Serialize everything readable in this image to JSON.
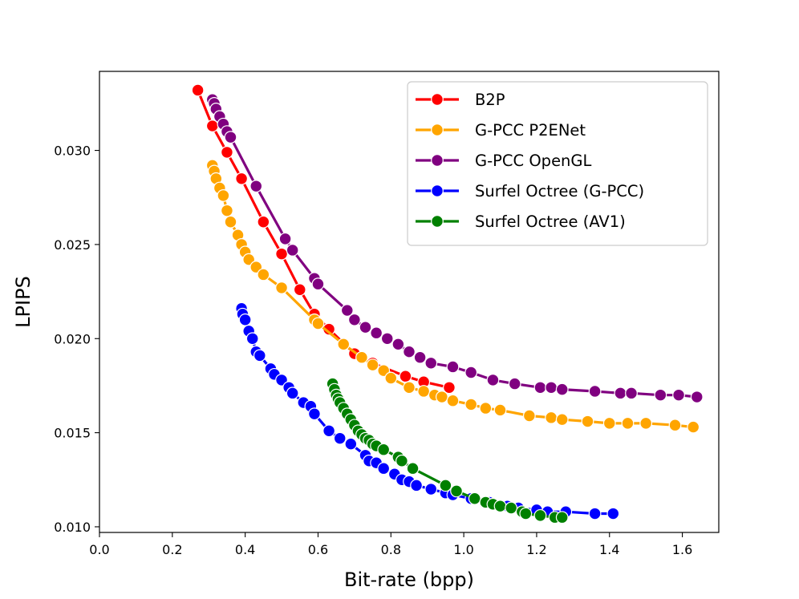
{
  "chart_data": {
    "type": "line",
    "title": "",
    "xlabel": "Bit-rate (bpp)",
    "ylabel": "LPIPS",
    "xlim": [
      0.0,
      1.7
    ],
    "ylim": [
      0.0097,
      0.0342
    ],
    "x_ticks": [
      "0.0",
      "0.2",
      "0.4",
      "0.6",
      "0.8",
      "1.0",
      "1.2",
      "1.4",
      "1.6"
    ],
    "x_tick_values": [
      0.0,
      0.2,
      0.4,
      0.6,
      0.8,
      1.0,
      1.2,
      1.4,
      1.6
    ],
    "y_ticks": [
      "0.010",
      "0.015",
      "0.020",
      "0.025",
      "0.030"
    ],
    "y_tick_values": [
      0.01,
      0.015,
      0.02,
      0.025,
      0.03
    ],
    "grid": false,
    "legend_position": "top-right",
    "series": [
      {
        "name": "B2P",
        "color": "#ff0000",
        "x": [
          0.27,
          0.31,
          0.35,
          0.39,
          0.45,
          0.5,
          0.55,
          0.59,
          0.63,
          0.7,
          0.75,
          0.84,
          0.89,
          0.96
        ],
        "y": [
          0.0332,
          0.0313,
          0.0299,
          0.0285,
          0.0262,
          0.0245,
          0.0226,
          0.0213,
          0.0205,
          0.0192,
          0.0187,
          0.018,
          0.0177,
          0.0174
        ]
      },
      {
        "name": "G-PCC P2ENet",
        "color": "#ffa500",
        "x": [
          0.31,
          0.315,
          0.32,
          0.33,
          0.34,
          0.35,
          0.36,
          0.38,
          0.39,
          0.4,
          0.41,
          0.43,
          0.45,
          0.5,
          0.59,
          0.6,
          0.67,
          0.72,
          0.75,
          0.78,
          0.8,
          0.85,
          0.89,
          0.92,
          0.94,
          0.97,
          1.02,
          1.06,
          1.1,
          1.18,
          1.24,
          1.27,
          1.34,
          1.4,
          1.45,
          1.5,
          1.58,
          1.63
        ],
        "y": [
          0.0292,
          0.0289,
          0.0285,
          0.028,
          0.0276,
          0.0268,
          0.0262,
          0.0255,
          0.025,
          0.0246,
          0.0242,
          0.0238,
          0.0234,
          0.0227,
          0.021,
          0.0208,
          0.0197,
          0.019,
          0.0186,
          0.0183,
          0.0179,
          0.0174,
          0.0172,
          0.017,
          0.0169,
          0.0167,
          0.0165,
          0.0163,
          0.0162,
          0.0159,
          0.0158,
          0.0157,
          0.0156,
          0.0155,
          0.0155,
          0.0155,
          0.0154,
          0.0153
        ]
      },
      {
        "name": "G-PCC OpenGL",
        "color": "#800080",
        "x": [
          0.31,
          0.315,
          0.32,
          0.33,
          0.34,
          0.35,
          0.36,
          0.43,
          0.51,
          0.53,
          0.59,
          0.6,
          0.68,
          0.7,
          0.73,
          0.76,
          0.79,
          0.82,
          0.85,
          0.88,
          0.91,
          0.97,
          1.02,
          1.08,
          1.14,
          1.21,
          1.24,
          1.27,
          1.36,
          1.43,
          1.46,
          1.54,
          1.59,
          1.64
        ],
        "y": [
          0.0327,
          0.0325,
          0.0322,
          0.0318,
          0.0314,
          0.031,
          0.0307,
          0.0281,
          0.0253,
          0.0247,
          0.0232,
          0.0229,
          0.0215,
          0.021,
          0.0206,
          0.0203,
          0.02,
          0.0197,
          0.0193,
          0.019,
          0.0187,
          0.0185,
          0.0182,
          0.0178,
          0.0176,
          0.0174,
          0.0174,
          0.0173,
          0.0172,
          0.0171,
          0.0171,
          0.017,
          0.017,
          0.0169
        ]
      },
      {
        "name": "Surfel Octree (G-PCC)",
        "color": "#0000ff",
        "x": [
          0.39,
          0.393,
          0.4,
          0.41,
          0.42,
          0.43,
          0.44,
          0.47,
          0.48,
          0.5,
          0.52,
          0.53,
          0.56,
          0.58,
          0.59,
          0.63,
          0.66,
          0.69,
          0.73,
          0.74,
          0.76,
          0.78,
          0.81,
          0.83,
          0.85,
          0.87,
          0.91,
          0.95,
          0.97,
          1.02,
          1.07,
          1.12,
          1.15,
          1.2,
          1.23,
          1.28,
          1.36,
          1.41
        ],
        "y": [
          0.0216,
          0.0213,
          0.021,
          0.0204,
          0.02,
          0.0193,
          0.0191,
          0.0184,
          0.0181,
          0.0178,
          0.0174,
          0.0171,
          0.0166,
          0.0164,
          0.016,
          0.0151,
          0.0147,
          0.0144,
          0.0138,
          0.0135,
          0.0134,
          0.0131,
          0.0128,
          0.0125,
          0.0124,
          0.0122,
          0.012,
          0.0118,
          0.0117,
          0.0115,
          0.0113,
          0.0111,
          0.011,
          0.0109,
          0.0108,
          0.0108,
          0.0107,
          0.0107
        ]
      },
      {
        "name": "Surfel Octree (AV1)",
        "color": "#008000",
        "x": [
          0.64,
          0.645,
          0.65,
          0.655,
          0.66,
          0.67,
          0.68,
          0.69,
          0.7,
          0.71,
          0.72,
          0.73,
          0.74,
          0.75,
          0.76,
          0.78,
          0.82,
          0.83,
          0.86,
          0.95,
          0.98,
          1.03,
          1.06,
          1.08,
          1.1,
          1.13,
          1.16,
          1.17,
          1.21,
          1.25,
          1.27
        ],
        "y": [
          0.0176,
          0.0173,
          0.017,
          0.0168,
          0.0166,
          0.0163,
          0.016,
          0.0157,
          0.0154,
          0.0151,
          0.0149,
          0.0147,
          0.0146,
          0.0144,
          0.0143,
          0.0141,
          0.0137,
          0.0135,
          0.0131,
          0.0122,
          0.0119,
          0.0115,
          0.0113,
          0.0112,
          0.0111,
          0.011,
          0.0108,
          0.0107,
          0.0106,
          0.0105,
          0.0105
        ]
      }
    ]
  }
}
